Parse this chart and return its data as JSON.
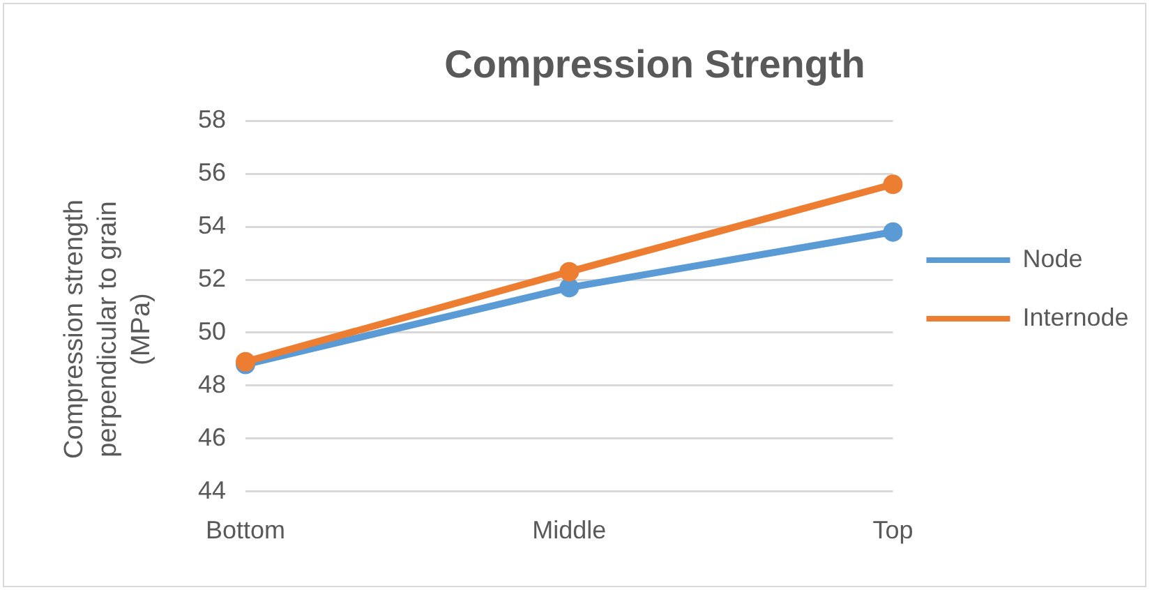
{
  "chart_data": {
    "type": "line",
    "title": "Compression Strength",
    "ylabel": "Compression strength perpendicular to grain (MPa)",
    "categories": [
      "Bottom",
      "Middle",
      "Top"
    ],
    "series": [
      {
        "name": "Node",
        "color": "#5b9bd5",
        "values": [
          48.8,
          51.7,
          53.8
        ]
      },
      {
        "name": "Internode",
        "color": "#ed7d31",
        "values": [
          48.9,
          52.3,
          55.6
        ]
      }
    ],
    "ylim": [
      44,
      58
    ],
    "yticks": [
      44,
      46,
      48,
      50,
      52,
      54,
      56,
      58
    ],
    "grid": "y",
    "legend": "right",
    "marker": "circle",
    "line_style": "solid"
  }
}
